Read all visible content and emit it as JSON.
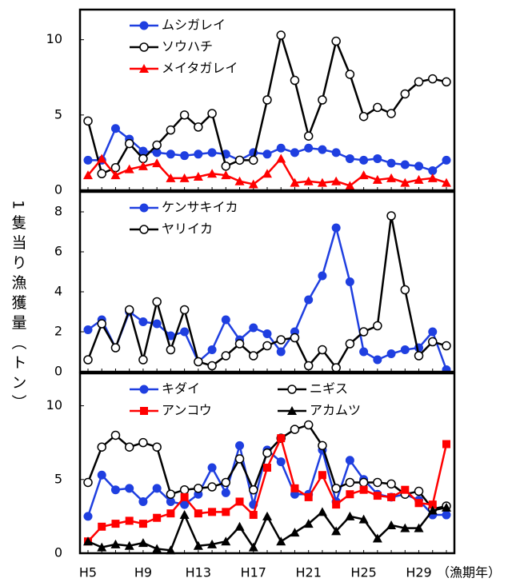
{
  "chart_data": [
    {
      "type": "line",
      "ylim": [
        0,
        12
      ],
      "yticks": [
        0,
        5,
        10
      ],
      "legend": "upper left",
      "legend_columns": 1,
      "series": [
        {
          "name": "ムシガレイ",
          "color": "#1f3fe0",
          "marker": "circle",
          "values": [
            2.0,
            2.0,
            4.1,
            3.4,
            2.6,
            2.5,
            2.4,
            2.3,
            2.4,
            2.5,
            2.4,
            2.0,
            2.5,
            2.4,
            2.8,
            2.5,
            2.8,
            2.7,
            2.5,
            2.1,
            2.0,
            2.1,
            1.8,
            1.7,
            1.6,
            1.3,
            2.0
          ]
        },
        {
          "name": "ソウハチ",
          "color": "#000000",
          "marker": "open-circle",
          "values": [
            4.6,
            1.1,
            1.5,
            3.1,
            2.1,
            3.0,
            4.0,
            5.0,
            4.2,
            5.1,
            1.6,
            2.0,
            2.0,
            6.0,
            10.3,
            7.3,
            3.6,
            6.0,
            9.9,
            7.7,
            4.9,
            5.5,
            5.1,
            6.4,
            7.2,
            7.4,
            7.2
          ]
        },
        {
          "name": "メイタガレイ",
          "color": "#ff0000",
          "marker": "triangle",
          "values": [
            1.0,
            2.1,
            1.0,
            1.4,
            1.6,
            1.8,
            0.8,
            0.8,
            0.9,
            1.1,
            1.0,
            0.6,
            0.4,
            1.1,
            2.1,
            0.5,
            0.6,
            0.5,
            0.6,
            0.3,
            1.0,
            0.7,
            0.8,
            0.5,
            0.7,
            0.8,
            0.5
          ]
        }
      ]
    },
    {
      "type": "line",
      "ylim": [
        0,
        9
      ],
      "yticks": [
        0,
        2,
        4,
        6,
        8
      ],
      "legend": "upper left",
      "legend_columns": 1,
      "ylabel": "1隻当り漁獲量（トン）",
      "series": [
        {
          "name": "ケンサキイカ",
          "color": "#1f3fe0",
          "marker": "circle",
          "values": [
            2.1,
            2.6,
            1.2,
            3.0,
            2.5,
            2.4,
            1.8,
            2.0,
            0.5,
            1.1,
            2.6,
            1.6,
            2.2,
            1.9,
            1.0,
            2.0,
            3.6,
            4.8,
            7.2,
            4.5,
            1.0,
            0.6,
            0.9,
            1.1,
            1.2,
            2.0,
            0.1
          ]
        },
        {
          "name": "ヤリイカ",
          "color": "#000000",
          "marker": "open-circle",
          "values": [
            0.6,
            2.4,
            1.2,
            3.1,
            0.6,
            3.5,
            1.1,
            3.1,
            0.5,
            0.3,
            0.8,
            1.4,
            0.8,
            1.3,
            1.6,
            1.7,
            0.3,
            1.1,
            0.2,
            1.4,
            2.0,
            2.3,
            7.8,
            4.1,
            0.8,
            1.5,
            1.3
          ]
        }
      ]
    },
    {
      "type": "line",
      "ylim": [
        0,
        12.2
      ],
      "yticks": [
        0,
        5,
        10
      ],
      "legend": "upper left",
      "legend_columns": 2,
      "categories": [
        "H5",
        null,
        null,
        null,
        "H9",
        null,
        null,
        null,
        "H13",
        null,
        null,
        null,
        "H17",
        null,
        null,
        null,
        "H21",
        null,
        null,
        null,
        "H25",
        null,
        null,
        null,
        "H29",
        null,
        null
      ],
      "xlabel": "（漁期年）",
      "series": [
        {
          "name": "キダイ",
          "color": "#1f3fe0",
          "marker": "circle",
          "values": [
            2.5,
            5.3,
            4.3,
            4.4,
            3.5,
            4.4,
            3.5,
            3.3,
            4.0,
            5.8,
            4.1,
            7.3,
            3.3,
            7.0,
            6.2,
            4.0,
            4.0,
            7.0,
            3.5,
            6.3,
            5.0,
            4.0,
            3.8,
            4.0,
            3.6,
            2.6,
            2.6
          ]
        },
        {
          "name": "ニギス",
          "color": "#000000",
          "marker": "open-circle",
          "values": [
            4.8,
            7.2,
            8.0,
            7.2,
            7.5,
            7.2,
            4.0,
            4.3,
            4.4,
            4.5,
            4.8,
            6.4,
            4.3,
            6.8,
            7.8,
            8.4,
            8.7,
            7.3,
            4.4,
            4.8,
            4.8,
            4.8,
            4.7,
            4.0,
            4.2,
            3.0,
            3.2
          ]
        },
        {
          "name": "アンコウ",
          "color": "#ff0000",
          "marker": "square",
          "values": [
            0.8,
            1.8,
            2.0,
            2.2,
            2.0,
            2.4,
            2.7,
            3.8,
            2.7,
            2.8,
            2.8,
            3.5,
            2.6,
            5.8,
            7.8,
            4.4,
            3.8,
            5.3,
            3.3,
            4.0,
            4.3,
            3.9,
            3.8,
            4.3,
            3.4,
            3.3,
            7.4
          ]
        },
        {
          "name": "アカムツ",
          "color": "#000000",
          "marker": "triangle",
          "values": [
            0.8,
            0.4,
            0.6,
            0.5,
            0.7,
            0.3,
            0.2,
            2.6,
            0.5,
            0.6,
            0.8,
            1.8,
            0.4,
            2.5,
            0.8,
            1.4,
            2.0,
            2.8,
            1.5,
            2.5,
            2.3,
            1.0,
            1.9,
            1.7,
            1.7,
            2.9,
            3.1
          ]
        }
      ]
    }
  ]
}
